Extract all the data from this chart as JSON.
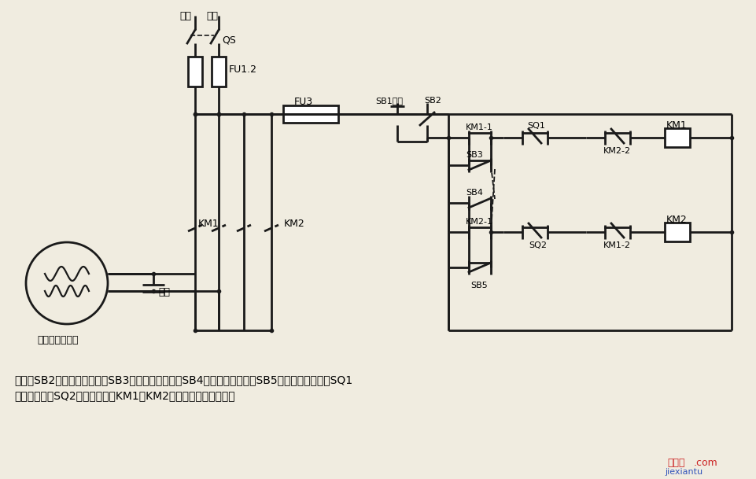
{
  "bg_color": "#f0ece0",
  "lc": "#1a1a1a",
  "label_huoxian": "火线",
  "label_lingxian": "零线",
  "label_QS": "QS",
  "label_FU12": "FU1.2",
  "label_FU3": "FU3",
  "label_SB1": "SB1停止",
  "label_SB2": "SB2",
  "label_KM11": "KM1-1",
  "label_SB3": "SB3",
  "label_SB4": "SB4",
  "label_KM21": "KM2-1",
  "label_SB5": "SB5",
  "label_SQ1": "SQ1",
  "label_SQ2": "SQ2",
  "label_KM1_coil": "KM1",
  "label_KM2_coil": "KM2",
  "label_KM22": "KM2-2",
  "label_KM12": "KM1-2",
  "label_KM1_main": "KM1",
  "label_KM2_main": "KM2",
  "label_capacitor": "电容",
  "label_motor": "单相电容电动机",
  "desc_line1": "说明：SB2为上升启动按钮，SB3为上升点动按钮，SB4为下降启动按钮，SB5为下降点动按钮；SQ1",
  "desc_line2": "为最高限位，SQ2为最低限位。KM1、KM2可用中间继电器代替。",
  "wm_red": "接线图",
  "wm_com": ".com",
  "wm_blue": "jiexiantu"
}
